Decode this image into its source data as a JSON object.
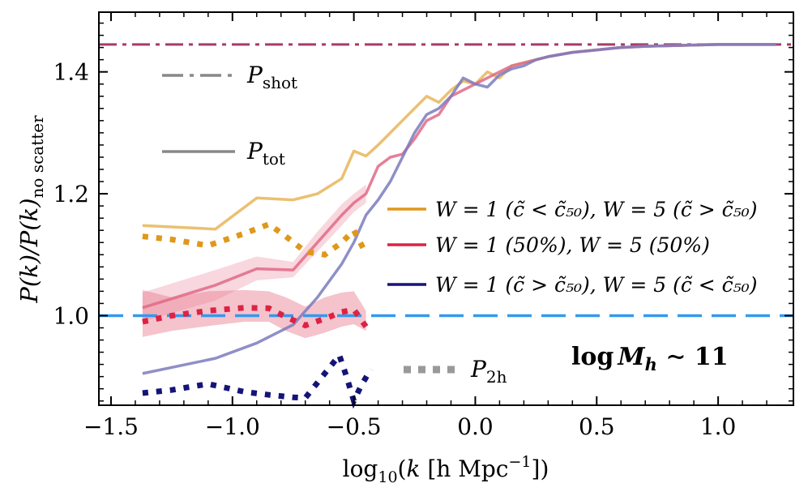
{
  "chart_data": {
    "type": "line",
    "xlabel_parts": {
      "pre": "log",
      "sub": "10",
      "mid": "(",
      "k": "k",
      "unit": " [h Mpc",
      "sup": "−1",
      "post": "])"
    },
    "ylabel_parts": {
      "pre": "P(k)/P(k)",
      "sub": "no scatter"
    },
    "xlim": [
      -1.55,
      1.31
    ],
    "ylim": [
      0.853,
      1.498
    ],
    "xticks": [
      -1.5,
      -1.0,
      -0.5,
      0.0,
      0.5,
      1.0
    ],
    "xtick_labels": [
      "−1.5",
      "−1.0",
      "−0.5",
      "0.0",
      "0.5",
      "1.0"
    ],
    "yticks": [
      1.0,
      1.2,
      1.4
    ],
    "ytick_labels": [
      "1.0",
      "1.2",
      "1.4"
    ],
    "reference_lines": [
      {
        "name": "P_shot",
        "y": 1.445,
        "style": "dashdot",
        "color": "#a83a6a"
      },
      {
        "name": "unity",
        "y": 1.0,
        "style": "dashed",
        "color": "#3399ee"
      }
    ],
    "series": [
      {
        "name": "W=1 (c<c50), W=5 (c>c50) total",
        "kind": "tot",
        "color": "#e8b558",
        "x": [
          -1.37,
          -1.07,
          -0.9,
          -0.75,
          -0.65,
          -0.55,
          -0.5,
          -0.45,
          -0.4,
          -0.35,
          -0.3,
          -0.25,
          -0.2,
          -0.15,
          -0.1,
          -0.05,
          0.0,
          0.05,
          0.1,
          0.15,
          0.2,
          0.25,
          0.3,
          0.4,
          0.5,
          0.6,
          0.7,
          0.8,
          0.9,
          1.0,
          1.1,
          1.24
        ],
        "y": [
          1.148,
          1.142,
          1.193,
          1.19,
          1.2,
          1.225,
          1.27,
          1.262,
          1.28,
          1.3,
          1.32,
          1.34,
          1.36,
          1.35,
          1.37,
          1.385,
          1.38,
          1.4,
          1.39,
          1.41,
          1.415,
          1.42,
          1.425,
          1.432,
          1.436,
          1.44,
          1.442,
          1.443,
          1.444,
          1.445,
          1.445,
          1.445
        ]
      },
      {
        "name": "W=1 (50%), W=5 (50%) total",
        "kind": "tot",
        "color": "#e06a86",
        "x": [
          -1.37,
          -1.07,
          -0.9,
          -0.75,
          -0.65,
          -0.55,
          -0.5,
          -0.45,
          -0.4,
          -0.35,
          -0.3,
          -0.25,
          -0.2,
          -0.15,
          -0.1,
          -0.05,
          0.0,
          0.05,
          0.1,
          0.15,
          0.2,
          0.25,
          0.3,
          0.4,
          0.5,
          0.6,
          0.7,
          0.8,
          0.9,
          1.0,
          1.1,
          1.24
        ],
        "y": [
          1.013,
          1.05,
          1.077,
          1.075,
          1.12,
          1.165,
          1.185,
          1.2,
          1.245,
          1.26,
          1.265,
          1.29,
          1.32,
          1.33,
          1.36,
          1.37,
          1.38,
          1.39,
          1.4,
          1.41,
          1.415,
          1.42,
          1.425,
          1.432,
          1.436,
          1.44,
          1.442,
          1.443,
          1.444,
          1.445,
          1.445,
          1.445
        ]
      },
      {
        "name": "W=1 (c>c50), W=5 (c<c50) total",
        "kind": "tot",
        "color": "#7b7bbd",
        "x": [
          -1.37,
          -1.07,
          -0.9,
          -0.75,
          -0.65,
          -0.55,
          -0.5,
          -0.45,
          -0.4,
          -0.35,
          -0.3,
          -0.25,
          -0.2,
          -0.15,
          -0.1,
          -0.05,
          0.0,
          0.05,
          0.1,
          0.15,
          0.2,
          0.25,
          0.3,
          0.4,
          0.5,
          0.6,
          0.7,
          0.8,
          0.9,
          1.0,
          1.1,
          1.24
        ],
        "y": [
          0.905,
          0.93,
          0.955,
          0.985,
          1.03,
          1.085,
          1.12,
          1.165,
          1.19,
          1.22,
          1.26,
          1.3,
          1.33,
          1.34,
          1.36,
          1.39,
          1.38,
          1.375,
          1.395,
          1.405,
          1.41,
          1.42,
          1.425,
          1.432,
          1.436,
          1.44,
          1.442,
          1.443,
          1.444,
          1.445,
          1.445,
          1.445
        ]
      },
      {
        "name": "W=1 (c<c50), W=5 (c>c50) 2h",
        "kind": "2h",
        "color": "#e0981a",
        "x": [
          -1.37,
          -1.25,
          -1.1,
          -0.95,
          -0.85,
          -0.78,
          -0.7,
          -0.62,
          -0.55,
          -0.5,
          -0.45
        ],
        "y": [
          1.13,
          1.125,
          1.115,
          1.135,
          1.15,
          1.13,
          1.105,
          1.1,
          1.12,
          1.14,
          1.102
        ]
      },
      {
        "name": "W=1 (50%), W=5 (50%) 2h",
        "kind": "2h",
        "color": "#dd2244",
        "x": [
          -1.37,
          -1.25,
          -1.1,
          -0.95,
          -0.85,
          -0.78,
          -0.7,
          -0.62,
          -0.55,
          -0.5,
          -0.45
        ],
        "y": [
          0.99,
          1.0,
          1.008,
          1.013,
          1.012,
          0.998,
          0.984,
          0.995,
          1.006,
          1.01,
          0.982
        ]
      },
      {
        "name": "W=1 (c>c50), W=5 (c<c50) 2h",
        "kind": "2h",
        "color": "#141478",
        "x": [
          -1.37,
          -1.25,
          -1.1,
          -0.95,
          -0.85,
          -0.75,
          -0.7,
          -0.65,
          -0.6,
          -0.56,
          -0.53,
          -0.5,
          -0.47,
          -0.43
        ],
        "y": [
          0.873,
          0.878,
          0.888,
          0.875,
          0.87,
          0.866,
          0.865,
          0.89,
          0.915,
          0.935,
          0.9,
          0.86,
          0.885,
          0.912
        ]
      }
    ],
    "bands": [
      {
        "name": "total spread (50%)",
        "color": "#f0a6b8",
        "opacity": 0.45,
        "x": [
          -1.37,
          -1.07,
          -0.9,
          -0.75,
          -0.65,
          -0.55,
          -0.5,
          -0.45
        ],
        "lo": [
          0.99,
          1.025,
          1.058,
          1.063,
          1.105,
          1.148,
          1.17,
          1.185
        ],
        "hi": [
          1.038,
          1.075,
          1.097,
          1.088,
          1.138,
          1.183,
          1.2,
          1.215
        ]
      },
      {
        "name": "2h spread (50%)",
        "color": "#e8798f",
        "opacity": 0.45,
        "x": [
          -1.37,
          -1.25,
          -1.1,
          -0.95,
          -0.85,
          -0.78,
          -0.7,
          -0.62,
          -0.55,
          -0.5,
          -0.45
        ],
        "lo": [
          0.965,
          0.975,
          0.983,
          0.99,
          0.99,
          0.975,
          0.963,
          0.972,
          0.982,
          0.986,
          0.975
        ],
        "hi": [
          1.042,
          1.03,
          1.04,
          1.042,
          1.04,
          1.03,
          1.015,
          1.03,
          1.038,
          1.04,
          1.008
        ]
      }
    ],
    "legend_left": {
      "shot": {
        "sym": "P",
        "sub": "shot"
      },
      "tot": {
        "sym": "P",
        "sub": "tot"
      },
      "twoh": {
        "sym": "P",
        "sub": "2h"
      }
    },
    "legend_right": [
      {
        "color": "#e0981a",
        "text": "W = 1 (c̃ < c̃₅₀), W = 5 (c̃ > c̃₅₀)"
      },
      {
        "color": "#dd2244",
        "text": "W = 1 (50%), W = 5 (50%)"
      },
      {
        "color": "#141478",
        "text": "W = 1 (c̃ > c̃₅₀), W = 5 (c̃ < c̃₅₀)"
      }
    ],
    "annotation": {
      "pre": "log",
      "m": "M",
      "sub": "h",
      "post": " ∼ 11"
    }
  }
}
